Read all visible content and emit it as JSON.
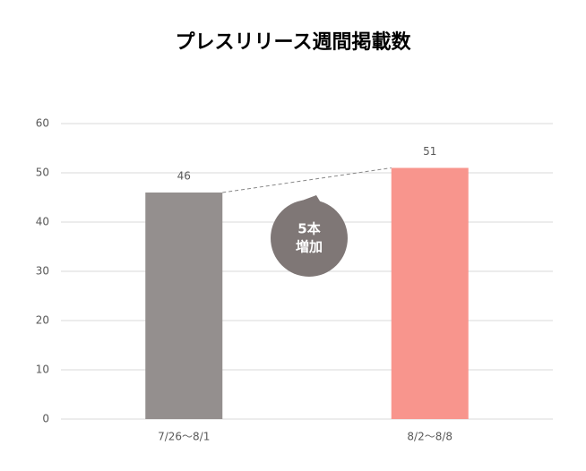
{
  "chart_data": {
    "type": "bar",
    "title": "プレスリリース週間掲載数",
    "categories": [
      "7/26〜8/1",
      "8/2〜8/8"
    ],
    "values": [
      46,
      51
    ],
    "colors": [
      "#948f8e",
      "#f8958d"
    ],
    "ylim": [
      0,
      60
    ],
    "yticks": [
      0,
      10,
      20,
      30,
      40,
      50,
      60
    ],
    "grid": true,
    "annotation_lines": [
      "5本",
      "増加"
    ]
  }
}
